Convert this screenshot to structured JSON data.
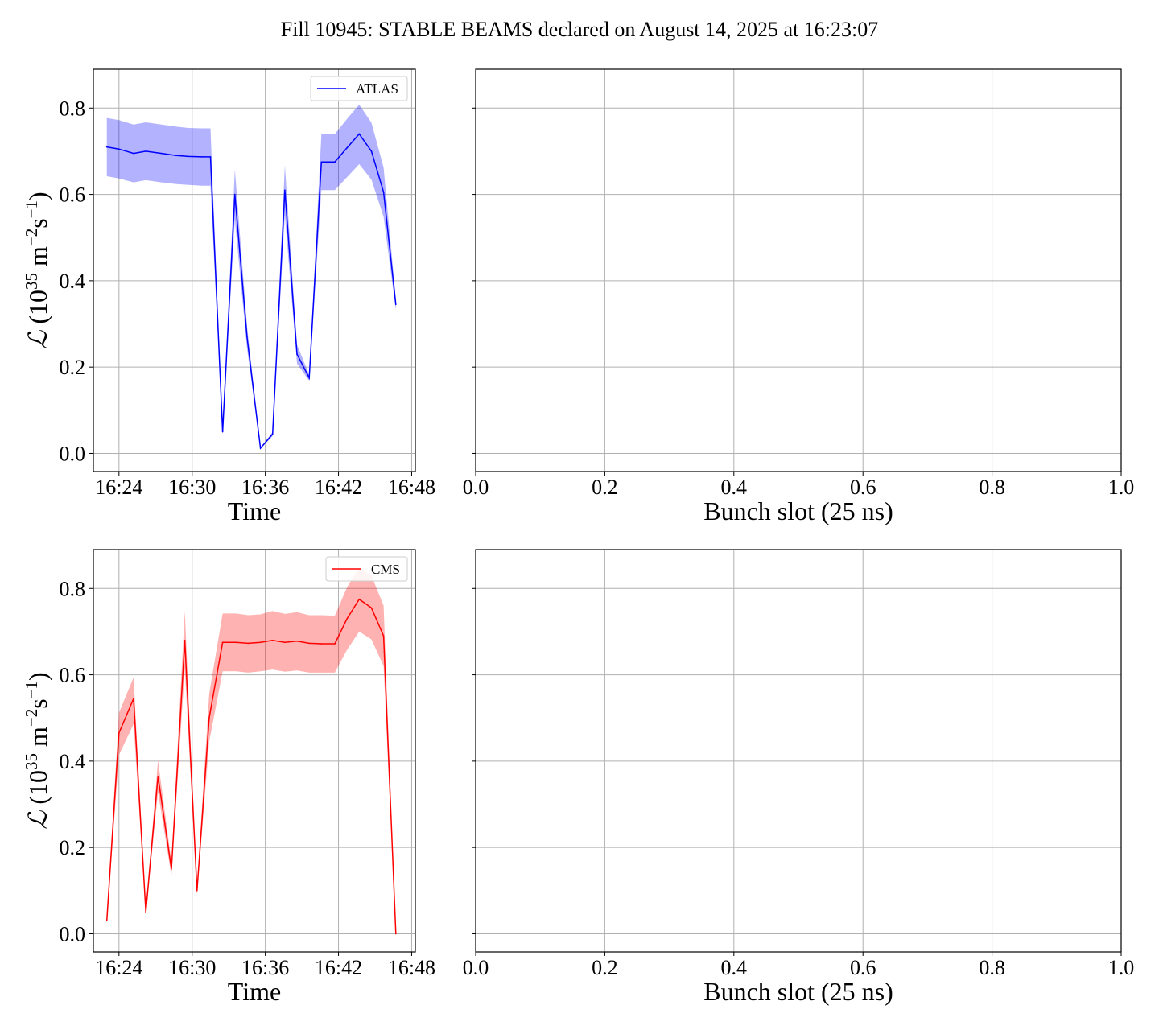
{
  "figure": {
    "title": "Fill 10945: STABLE BEAMS declared on August 14, 2025 at 16:23:07"
  },
  "ylabel_text": {
    "script_L": "ℒ",
    "open": "(10",
    "exp": "35",
    "unit_m": " m",
    "exp_m": "−2",
    "unit_s": "s",
    "exp_s": "−1",
    "close": ")"
  },
  "chart_data": [
    {
      "id": "atlas",
      "type": "line",
      "xlabel": "Time",
      "ylabel": "ℒ (10^35 m^−2 s^−1)",
      "x_ticks": [
        "16:24",
        "16:30",
        "16:36",
        "16:42",
        "16:48"
      ],
      "x_tick_minutes": [
        24,
        30,
        36,
        42,
        48
      ],
      "xlim": [
        21.9,
        48.3
      ],
      "ylim": [
        -0.042,
        0.89
      ],
      "y_ticks": [
        0.0,
        0.2,
        0.4,
        0.6,
        0.8
      ],
      "y_tick_labels": [
        "0.0",
        "0.2",
        "0.4",
        "0.6",
        "0.8"
      ],
      "grid": true,
      "legend": {
        "position": "top-right",
        "entries": [
          "ATLAS"
        ]
      },
      "series": [
        {
          "name": "ATLAS",
          "color": "#0000ff",
          "band_color": "#0000ff",
          "x_minutes": [
            23.0,
            24.0,
            25.2,
            26.2,
            27.5,
            28.7,
            29.7,
            30.8,
            31.5,
            32.5,
            33.5,
            34.5,
            35.6,
            36.6,
            37.6,
            38.6,
            39.6,
            40.6,
            41.7,
            42.7,
            43.7,
            44.7,
            45.7,
            46.7
          ],
          "values": [
            0.71,
            0.705,
            0.695,
            0.7,
            0.695,
            0.69,
            0.688,
            0.687,
            0.687,
            0.05,
            0.6,
            0.27,
            0.012,
            0.045,
            0.61,
            0.23,
            0.175,
            0.675,
            0.675,
            0.708,
            0.74,
            0.7,
            0.605,
            0.345
          ],
          "lower": [
            0.642,
            0.637,
            0.628,
            0.633,
            0.628,
            0.624,
            0.622,
            0.62,
            0.62,
            0.045,
            0.542,
            0.244,
            0.011,
            0.04,
            0.552,
            0.208,
            0.168,
            0.61,
            0.61,
            0.64,
            0.67,
            0.634,
            0.548,
            0.332
          ],
          "upper": [
            0.777,
            0.772,
            0.762,
            0.767,
            0.762,
            0.757,
            0.754,
            0.753,
            0.753,
            0.055,
            0.658,
            0.296,
            0.013,
            0.05,
            0.668,
            0.252,
            0.182,
            0.74,
            0.74,
            0.775,
            0.808,
            0.766,
            0.662,
            0.358
          ]
        }
      ]
    },
    {
      "id": "atlas-bunch",
      "type": "line",
      "xlabel": "Bunch slot (25 ns)",
      "x_ticks": [
        "0.0",
        "0.2",
        "0.4",
        "0.6",
        "0.8",
        "1.0"
      ],
      "x_tick_values": [
        0.0,
        0.2,
        0.4,
        0.6,
        0.8,
        1.0
      ],
      "xlim": [
        0.0,
        1.0
      ],
      "ylim": [
        -0.042,
        0.89
      ],
      "y_ticks": [
        0.0,
        0.2,
        0.4,
        0.6,
        0.8
      ],
      "grid": true,
      "series": []
    },
    {
      "id": "cms",
      "type": "line",
      "xlabel": "Time",
      "ylabel": "ℒ (10^35 m^−2 s^−1)",
      "x_ticks": [
        "16:24",
        "16:30",
        "16:36",
        "16:42",
        "16:48"
      ],
      "x_tick_minutes": [
        24,
        30,
        36,
        42,
        48
      ],
      "xlim": [
        21.9,
        48.3
      ],
      "ylim": [
        -0.042,
        0.89
      ],
      "y_ticks": [
        0.0,
        0.2,
        0.4,
        0.6,
        0.8
      ],
      "y_tick_labels": [
        "0.0",
        "0.2",
        "0.4",
        "0.6",
        "0.8"
      ],
      "grid": true,
      "legend": {
        "position": "top-right",
        "entries": [
          "CMS"
        ]
      },
      "series": [
        {
          "name": "CMS",
          "color": "#ff0000",
          "band_color": "#ff0000",
          "x_minutes": [
            23.0,
            24.0,
            25.2,
            26.2,
            27.2,
            28.3,
            29.4,
            30.4,
            31.4,
            32.5,
            33.6,
            34.6,
            35.6,
            36.6,
            37.6,
            38.6,
            39.6,
            40.6,
            41.7,
            42.7,
            43.7,
            44.7,
            45.7,
            46.7
          ],
          "values": [
            0.03,
            0.465,
            0.545,
            0.05,
            0.365,
            0.15,
            0.68,
            0.1,
            0.5,
            0.675,
            0.675,
            0.673,
            0.675,
            0.68,
            0.675,
            0.678,
            0.673,
            0.672,
            0.672,
            0.73,
            0.775,
            0.755,
            0.69,
            0.0
          ],
          "lower": [
            0.027,
            0.414,
            0.486,
            0.045,
            0.328,
            0.134,
            0.615,
            0.089,
            0.445,
            0.608,
            0.608,
            0.605,
            0.608,
            0.612,
            0.607,
            0.61,
            0.605,
            0.605,
            0.605,
            0.658,
            0.7,
            0.682,
            0.62,
            0.0
          ],
          "upper": [
            0.033,
            0.512,
            0.594,
            0.055,
            0.402,
            0.167,
            0.748,
            0.111,
            0.556,
            0.742,
            0.742,
            0.738,
            0.74,
            0.748,
            0.741,
            0.745,
            0.738,
            0.738,
            0.737,
            0.803,
            0.848,
            0.83,
            0.76,
            0.0
          ]
        }
      ]
    },
    {
      "id": "cms-bunch",
      "type": "line",
      "xlabel": "Bunch slot (25 ns)",
      "x_ticks": [
        "0.0",
        "0.2",
        "0.4",
        "0.6",
        "0.8",
        "1.0"
      ],
      "x_tick_values": [
        0.0,
        0.2,
        0.4,
        0.6,
        0.8,
        1.0
      ],
      "xlim": [
        0.0,
        1.0
      ],
      "ylim": [
        -0.042,
        0.89
      ],
      "y_ticks": [
        0.0,
        0.2,
        0.4,
        0.6,
        0.8
      ],
      "grid": true,
      "series": []
    }
  ]
}
